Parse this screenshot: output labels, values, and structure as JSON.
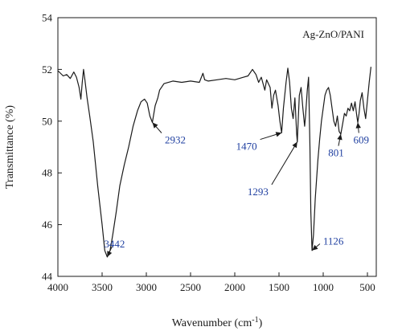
{
  "chart_data": {
    "type": "line",
    "xlabel": "Wavenumber (cm",
    "xlabel_sup": "-1",
    "xlabel_close": ")",
    "ylabel": "Transmittance (%)",
    "xlim": [
      4000,
      400
    ],
    "ylim": [
      44,
      54
    ],
    "x_ticks": [
      4000,
      3500,
      3000,
      2500,
      2000,
      1500,
      1000,
      500
    ],
    "y_ticks": [
      44,
      46,
      48,
      50,
      52,
      54
    ],
    "legend_placement": "top-right",
    "grid": false,
    "colors": {
      "line": "#1a1a1a",
      "annotation": "#1f3fa0",
      "axis": "#1a1a1a"
    },
    "series": [
      {
        "name": "Ag-ZnO/PANI",
        "points": [
          [
            4000,
            51.95
          ],
          [
            3940,
            51.75
          ],
          [
            3900,
            51.8
          ],
          [
            3860,
            51.65
          ],
          [
            3820,
            51.9
          ],
          [
            3790,
            51.7
          ],
          [
            3760,
            51.3
          ],
          [
            3740,
            50.85
          ],
          [
            3725,
            51.5
          ],
          [
            3710,
            52.0
          ],
          [
            3695,
            51.6
          ],
          [
            3670,
            50.9
          ],
          [
            3640,
            50.2
          ],
          [
            3600,
            49.2
          ],
          [
            3550,
            47.5
          ],
          [
            3500,
            46.0
          ],
          [
            3470,
            45.0
          ],
          [
            3442,
            44.75
          ],
          [
            3410,
            45.0
          ],
          [
            3380,
            45.6
          ],
          [
            3340,
            46.5
          ],
          [
            3300,
            47.5
          ],
          [
            3250,
            48.3
          ],
          [
            3200,
            49.0
          ],
          [
            3150,
            49.8
          ],
          [
            3100,
            50.4
          ],
          [
            3060,
            50.75
          ],
          [
            3020,
            50.85
          ],
          [
            2990,
            50.7
          ],
          [
            2960,
            50.2
          ],
          [
            2932,
            49.95
          ],
          [
            2900,
            50.6
          ],
          [
            2870,
            50.9
          ],
          [
            2850,
            51.2
          ],
          [
            2800,
            51.45
          ],
          [
            2700,
            51.55
          ],
          [
            2600,
            51.5
          ],
          [
            2500,
            51.55
          ],
          [
            2400,
            51.5
          ],
          [
            2360,
            51.85
          ],
          [
            2340,
            51.6
          ],
          [
            2300,
            51.55
          ],
          [
            2200,
            51.6
          ],
          [
            2100,
            51.65
          ],
          [
            2000,
            51.6
          ],
          [
            1900,
            51.7
          ],
          [
            1850,
            51.75
          ],
          [
            1800,
            52.0
          ],
          [
            1760,
            51.8
          ],
          [
            1730,
            51.5
          ],
          [
            1700,
            51.7
          ],
          [
            1660,
            51.2
          ],
          [
            1640,
            51.6
          ],
          [
            1600,
            51.3
          ],
          [
            1580,
            50.5
          ],
          [
            1560,
            51.0
          ],
          [
            1540,
            51.2
          ],
          [
            1510,
            50.6
          ],
          [
            1490,
            50.0
          ],
          [
            1470,
            49.55
          ],
          [
            1450,
            50.5
          ],
          [
            1420,
            51.5
          ],
          [
            1400,
            52.05
          ],
          [
            1380,
            51.5
          ],
          [
            1360,
            50.5
          ],
          [
            1340,
            50.1
          ],
          [
            1320,
            50.9
          ],
          [
            1300,
            49.5
          ],
          [
            1293,
            49.2
          ],
          [
            1285,
            49.8
          ],
          [
            1270,
            51.0
          ],
          [
            1250,
            51.3
          ],
          [
            1230,
            50.5
          ],
          [
            1210,
            49.8
          ],
          [
            1200,
            50.2
          ],
          [
            1180,
            51.2
          ],
          [
            1165,
            51.7
          ],
          [
            1150,
            49.0
          ],
          [
            1140,
            46.5
          ],
          [
            1126,
            45.0
          ],
          [
            1110,
            45.6
          ],
          [
            1090,
            47.0
          ],
          [
            1060,
            48.5
          ],
          [
            1040,
            49.3
          ],
          [
            1020,
            50.0
          ],
          [
            1000,
            50.5
          ],
          [
            980,
            51.0
          ],
          [
            960,
            51.2
          ],
          [
            940,
            51.3
          ],
          [
            920,
            51.0
          ],
          [
            900,
            50.5
          ],
          [
            880,
            50.0
          ],
          [
            860,
            49.8
          ],
          [
            840,
            50.2
          ],
          [
            820,
            49.6
          ],
          [
            801,
            49.5
          ],
          [
            780,
            49.9
          ],
          [
            760,
            50.3
          ],
          [
            740,
            50.2
          ],
          [
            720,
            50.5
          ],
          [
            700,
            50.4
          ],
          [
            680,
            50.7
          ],
          [
            660,
            50.4
          ],
          [
            640,
            50.75
          ],
          [
            620,
            50.2
          ],
          [
            609,
            49.95
          ],
          [
            595,
            50.3
          ],
          [
            580,
            50.8
          ],
          [
            560,
            51.1
          ],
          [
            540,
            50.5
          ],
          [
            520,
            50.1
          ],
          [
            500,
            50.8
          ],
          [
            480,
            51.5
          ],
          [
            460,
            52.1
          ]
        ]
      }
    ],
    "annotations": [
      {
        "label": "3442",
        "x": 3442,
        "y": 44.75,
        "label_x": 3360,
        "label_y": 45.25
      },
      {
        "label": "2932",
        "x": 2932,
        "y": 49.95,
        "label_x": 2800,
        "label_y": 49.45
      },
      {
        "label": "1470",
        "x": 1470,
        "y": 49.55,
        "label_x": 1740,
        "label_y": 49.2
      },
      {
        "label": "1293",
        "x": 1293,
        "y": 49.2,
        "label_x": 1610,
        "label_y": 47.45
      },
      {
        "label": "1126",
        "x": 1126,
        "y": 45.0,
        "label_x": 1010,
        "label_y": 45.35
      },
      {
        "label": "801",
        "x": 801,
        "y": 49.5,
        "label_x": 855,
        "label_y": 48.95
      },
      {
        "label": "609",
        "x": 609,
        "y": 49.95,
        "label_x": 570,
        "label_y": 49.45
      }
    ]
  }
}
